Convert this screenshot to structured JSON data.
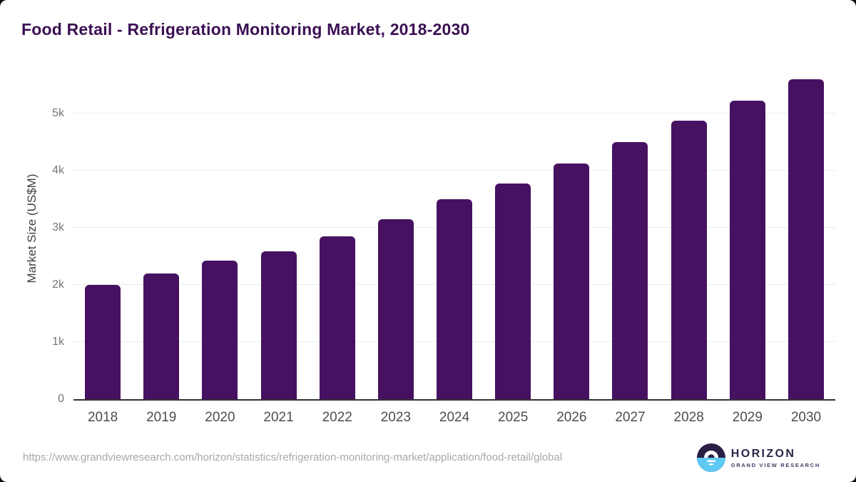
{
  "page": {
    "title": "Food Retail - Refrigeration Monitoring Market, 2018-2030"
  },
  "chart_data": {
    "type": "bar",
    "title": "Food Retail - Refrigeration Monitoring Market, 2018-2030",
    "categories": [
      "2018",
      "2019",
      "2020",
      "2021",
      "2022",
      "2023",
      "2024",
      "2025",
      "2026",
      "2027",
      "2028",
      "2029",
      "2030"
    ],
    "values": [
      2000,
      2200,
      2430,
      2590,
      2850,
      3150,
      3500,
      3770,
      4120,
      4500,
      4870,
      5230,
      5600
    ],
    "xlabel": "",
    "ylabel": "Market Size (US$M)",
    "ylim": [
      0,
      5750
    ],
    "ytick_values": [
      0,
      1000,
      2000,
      3000,
      4000,
      5000
    ],
    "ytick_labels": [
      "0",
      "1k",
      "2k",
      "3k",
      "4k",
      "5k"
    ],
    "grid": "horizontal",
    "legend": "none"
  },
  "footer": {
    "source_url": "https://www.grandviewresearch.com/horizon/statistics/refrigeration-monitoring-market/application/food-retail/global",
    "logo": {
      "name": "HORIZON",
      "subtitle": "GRAND VIEW RESEARCH"
    }
  },
  "colors": {
    "bar": "#471161",
    "title": "#3b1053",
    "gridline": "#ebebeb",
    "axis_line": "#333333",
    "y_tick_text": "#767676",
    "x_tick_text": "#4d4d4d",
    "url_text": "#a8a8a8",
    "logo_dark": "#2b2044",
    "logo_blue": "#5ec9f2",
    "page_background": "#0e0b14"
  }
}
